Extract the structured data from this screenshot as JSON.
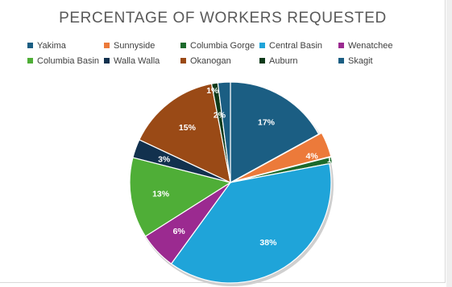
{
  "chart_data": {
    "type": "pie",
    "title": "PERCENTAGE OF WORKERS REQUESTED",
    "legend_position": "top",
    "series": [
      {
        "name": "Yakima",
        "value": 17,
        "label": "17%",
        "color": "#1b5e83"
      },
      {
        "name": "Sunnyside",
        "value": 4,
        "label": "4%",
        "color": "#ec7a3a"
      },
      {
        "name": "Columbia Gorge",
        "value": 1,
        "label": "1%",
        "color": "#1c6a2c"
      },
      {
        "name": "Central Basin",
        "value": 38,
        "label": "38%",
        "color": "#1fa4d9"
      },
      {
        "name": "Wenatchee",
        "value": 6,
        "label": "6%",
        "color": "#9b2a90"
      },
      {
        "name": "Columbia Basin",
        "value": 13,
        "label": "13%",
        "color": "#4fae37"
      },
      {
        "name": "Walla Walla",
        "value": 3,
        "label": "3%",
        "color": "#12314e"
      },
      {
        "name": "Okanogan",
        "value": 15,
        "label": "15%",
        "color": "#9a4a16"
      },
      {
        "name": "Auburn",
        "value": 1,
        "label": "1%",
        "color": "#0e3a1a"
      },
      {
        "name": "Skagit",
        "value": 2,
        "label": "2%",
        "color": "#1b5e83"
      }
    ]
  }
}
